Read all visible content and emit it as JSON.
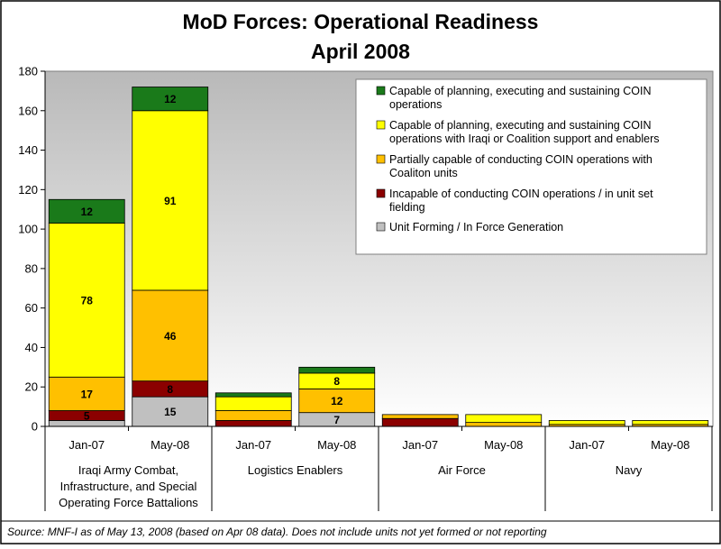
{
  "chart_data": {
    "type": "bar",
    "stacked": true,
    "title": [
      "MoD Forces:  Operational Readiness",
      "April 2008"
    ],
    "ylim": [
      0,
      180
    ],
    "yticks": [
      0,
      20,
      40,
      60,
      80,
      100,
      120,
      140,
      160,
      180
    ],
    "categories": [
      "Jan-07",
      "May-08",
      "Jan-07",
      "May-08",
      "Jan-07",
      "May-08",
      "Jan-07",
      "May-08"
    ],
    "groups": [
      {
        "lines": [
          "Iraqi Army Combat,",
          "Infrastructure, and Special",
          "Operating Force Battalions"
        ]
      },
      {
        "lines": [
          "Logistics Enablers"
        ]
      },
      {
        "lines": [
          "Air Force"
        ]
      },
      {
        "lines": [
          "Navy"
        ]
      }
    ],
    "series": [
      {
        "name": "Unit Forming / In Force Generation",
        "color": "#c0c0c0",
        "values": [
          3,
          15,
          0,
          7,
          0,
          0,
          0,
          0
        ],
        "labels": [
          "",
          "15",
          "",
          "7",
          "",
          "",
          "",
          ""
        ]
      },
      {
        "name": "Incapable of conducting COIN operations / in unit set fielding",
        "color": "#8b0000",
        "values": [
          5,
          8,
          3,
          0,
          4,
          0,
          0,
          0
        ],
        "labels": [
          "5",
          "8",
          "",
          "",
          "",
          "",
          "",
          ""
        ]
      },
      {
        "name": "Partially capable of conducting COIN operations with Coaliton units",
        "color": "#ffc000",
        "values": [
          17,
          46,
          5,
          12,
          2,
          2,
          1,
          1
        ],
        "labels": [
          "17",
          "46",
          "",
          "12",
          "",
          "",
          "",
          ""
        ]
      },
      {
        "name": "Capable of planning, executing and sustaining COIN operations with Iraqi or Coalition support and enablers",
        "color": "#ffff00",
        "values": [
          78,
          91,
          7,
          8,
          0,
          4,
          2,
          2
        ],
        "labels": [
          "78",
          "91",
          "",
          "8",
          "",
          "",
          "",
          ""
        ]
      },
      {
        "name": "Capable of planning, executing and sustaining COIN operations",
        "color": "#1a7a1a",
        "values": [
          12,
          12,
          2,
          3,
          0,
          0,
          0,
          0
        ],
        "labels": [
          "12",
          "12",
          "",
          "",
          "",
          "",
          "",
          ""
        ]
      }
    ],
    "legend": {
      "position": "top-right",
      "entries": [
        {
          "color": "#1a7a1a",
          "lines": [
            "Capable of planning, executing and sustaining COIN",
            "operations"
          ]
        },
        {
          "color": "#ffff00",
          "lines": [
            "Capable of planning, executing and sustaining COIN",
            "operations with Iraqi or Coalition support and enablers"
          ]
        },
        {
          "color": "#ffc000",
          "lines": [
            "Partially capable of conducting COIN operations with",
            "Coaliton units"
          ]
        },
        {
          "color": "#8b0000",
          "lines": [
            "Incapable of conducting COIN operations / in unit set",
            "fielding"
          ]
        },
        {
          "color": "#c0c0c0",
          "lines": [
            "Unit Forming / In Force Generation"
          ]
        }
      ]
    },
    "source": "Source:  MNF-I as of May 13, 2008 (based on Apr 08 data).  Does not include units not yet formed or not reporting"
  }
}
